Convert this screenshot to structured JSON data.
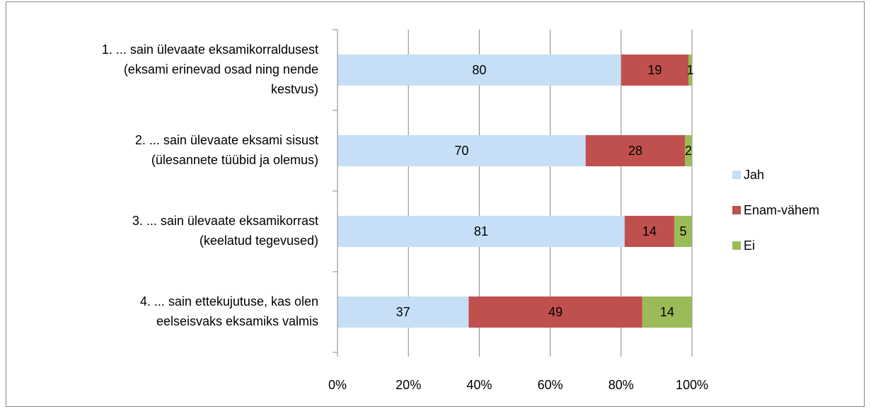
{
  "chart_data": {
    "type": "stacked_bar_horizontal",
    "categories": [
      "1. ... sain ülevaate eksamikorraldusest\n(eksami erinevad osad ning nende\nkestvus)",
      "2. ... sain ülevaate eksami sisust\n(ülesannete tüübid ja olemus)",
      "3. ... sain ülevaate eksamikorrast\n(keelatud tegevused)",
      "4. ... sain ettekujutuse, kas olen\neelseisvaks eksamiks valmis"
    ],
    "series": [
      {
        "name": "Jah",
        "color": "#c6dff6",
        "values": [
          80,
          70,
          81,
          37
        ]
      },
      {
        "name": "Enam-vähem",
        "color": "#c0504d",
        "values": [
          19,
          28,
          14,
          49
        ]
      },
      {
        "name": "Ei",
        "color": "#9bbb59",
        "values": [
          1,
          2,
          5,
          14
        ]
      }
    ],
    "xlim": [
      0,
      100
    ],
    "xticks": [
      {
        "value": 0,
        "label": "0%"
      },
      {
        "value": 20,
        "label": "20%"
      },
      {
        "value": 40,
        "label": "40%"
      },
      {
        "value": 60,
        "label": "60%"
      },
      {
        "value": 80,
        "label": "80%"
      },
      {
        "value": 100,
        "label": "100%"
      }
    ],
    "grid": true,
    "legend": "right"
  }
}
